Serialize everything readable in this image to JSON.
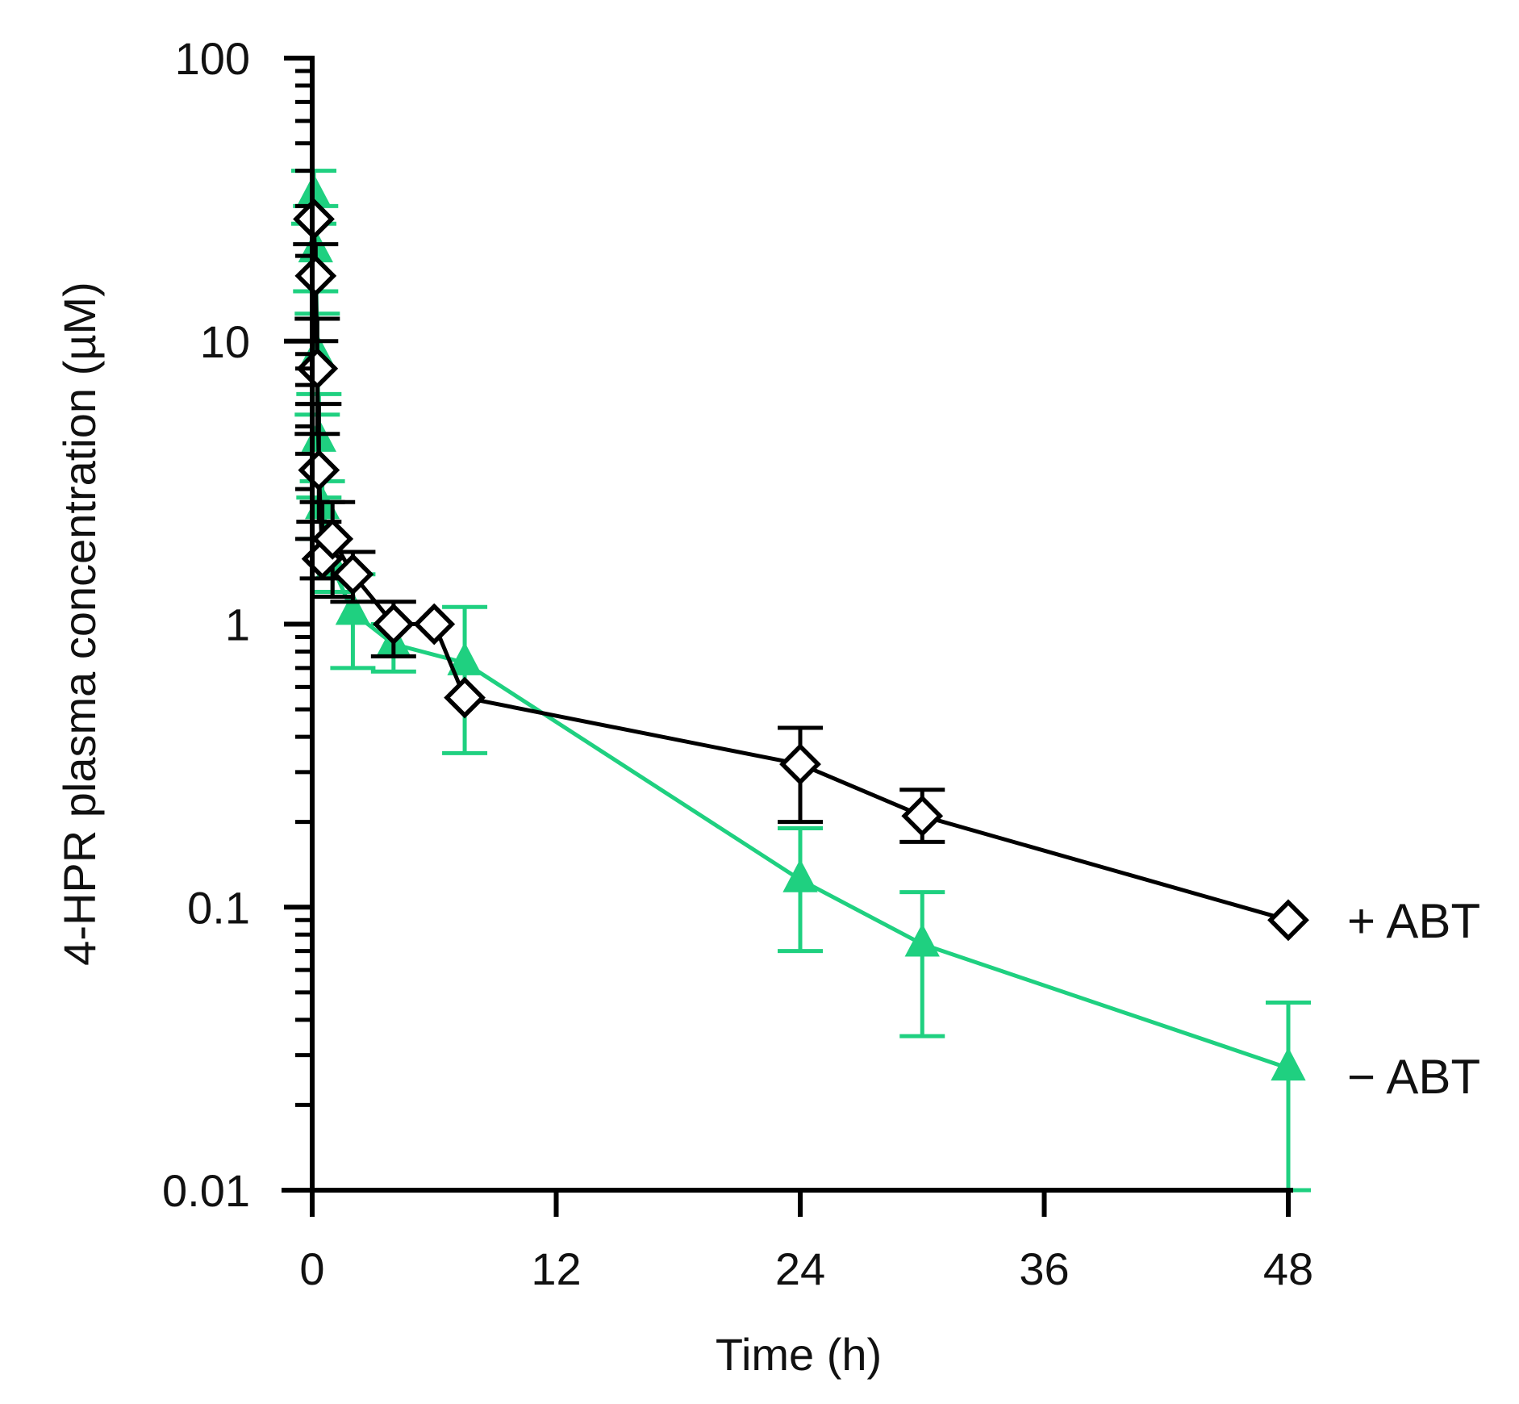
{
  "chart_data": {
    "type": "line",
    "title": "",
    "xlabel": "Time (h)",
    "ylabel": "4-HPR plasma concentration (µM)",
    "xlim": [
      0,
      48
    ],
    "ylim": [
      0.01,
      100
    ],
    "yscale": "log",
    "xticks": [
      "0",
      "12",
      "24",
      "36",
      "48"
    ],
    "yticks": [
      "0.01",
      "0.1",
      "1",
      "10",
      "100"
    ],
    "colors": {
      "plus": "#000000",
      "minus": "#1fd080",
      "axis": "#000000"
    },
    "series": [
      {
        "name": "+ ABT",
        "label": "+ ABT",
        "marker": "open-diamond",
        "x": [
          0.08,
          0.17,
          0.25,
          0.33,
          0.5,
          1.0,
          2.0,
          4.0,
          6.0,
          7.5,
          24.0,
          30.0,
          48.0
        ],
        "y": [
          27.0,
          17.0,
          8.0,
          3.5,
          1.7,
          2.0,
          1.5,
          1.0,
          1.0,
          0.55,
          0.32,
          0.21,
          0.09
        ],
        "upper": [
          null,
          22.0,
          12.0,
          6.0,
          2.7,
          2.7,
          1.8,
          1.2,
          null,
          null,
          0.43,
          0.26,
          null
        ],
        "lower": [
          null,
          10.0,
          4.7,
          2.3,
          1.45,
          1.25,
          1.2,
          0.77,
          null,
          null,
          0.2,
          0.17,
          null
        ]
      },
      {
        "name": "− ABT",
        "label": "− ABT",
        "marker": "filled-triangle",
        "x": [
          0.08,
          0.17,
          0.25,
          0.33,
          0.5,
          1.0,
          2.0,
          4.0,
          7.5,
          24.0,
          30.0,
          48.0
        ],
        "y": [
          33.0,
          21.0,
          9.0,
          4.5,
          2.6,
          1.6,
          1.1,
          0.85,
          0.73,
          0.125,
          0.074,
          0.027
        ],
        "upper": [
          40.0,
          30.0,
          12.5,
          6.5,
          3.2,
          1.6,
          1.5,
          1.0,
          1.15,
          0.19,
          0.113,
          0.046
        ],
        "lower": [
          26.0,
          15.0,
          5.5,
          2.8,
          2.0,
          1.3,
          0.7,
          0.68,
          0.35,
          0.07,
          0.035,
          0.01
        ]
      }
    ]
  }
}
